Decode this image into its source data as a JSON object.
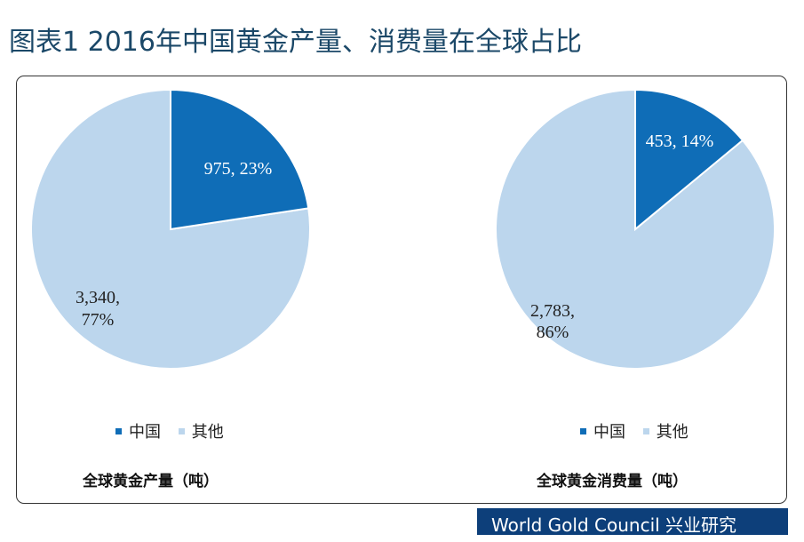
{
  "title": "图表1 2016年中国黄金产量、消费量在全球占比",
  "footer": "World Gold Council   兴业研究",
  "colors": {
    "china": "#0f6db7",
    "other": "#bcd6ed"
  },
  "chart_data": [
    {
      "type": "pie",
      "title": "全球黄金产量（吨）",
      "legend": [
        "中国",
        "其他"
      ],
      "legend_placement": "bottom",
      "slices": [
        {
          "name": "中国",
          "value": 975,
          "percent": 23,
          "label": "975, 23%"
        },
        {
          "name": "其他",
          "value": 3340,
          "percent": 77,
          "label_line1": "3,340,",
          "label_line2": "77%"
        }
      ]
    },
    {
      "type": "pie",
      "title": "全球黄金消费量（吨）",
      "legend": [
        "中国",
        "其他"
      ],
      "legend_placement": "bottom",
      "slices": [
        {
          "name": "中国",
          "value": 453,
          "percent": 14,
          "label": "453, 14%"
        },
        {
          "name": "其他",
          "value": 2783,
          "percent": 86,
          "label_line1": "2,783,",
          "label_line2": "86%"
        }
      ]
    }
  ]
}
